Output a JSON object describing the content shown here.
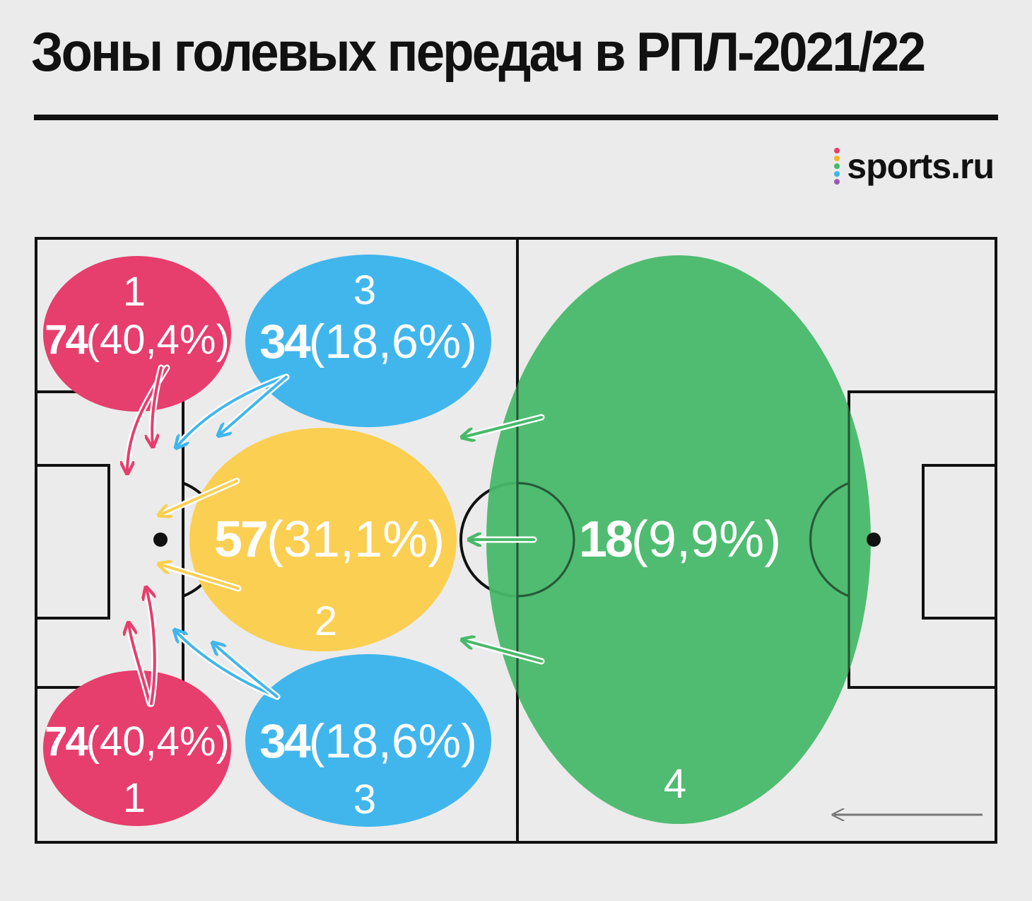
{
  "title": "Зоны голевых передач в РПЛ-2021/22",
  "brand": {
    "name": "sports.ru",
    "logo_icon": "sports-ru-dots-logo",
    "dot_colors": [
      "#e63e6d",
      "#f2b72c",
      "#48b96a",
      "#3fb4e9",
      "#9b59b6"
    ]
  },
  "colors": {
    "zone1": "#e63e6d",
    "zone2": "#fbcf52",
    "zone3": "#41b6ec",
    "zone4": "#48b96a",
    "background": "#ebebeb",
    "lines": "#111111"
  },
  "zones": {
    "zone1_top": {
      "number": "1",
      "value": "74",
      "pct": "(40,4%)"
    },
    "zone1_bottom": {
      "number": "1",
      "value": "74",
      "pct": "(40,4%)"
    },
    "zone3_top": {
      "number": "3",
      "value": "34",
      "pct": "(18,6%)"
    },
    "zone3_bottom": {
      "number": "3",
      "value": "34",
      "pct": "(18,6%)"
    },
    "zone2": {
      "number": "2",
      "value": "57",
      "pct": "(31,1%)"
    },
    "zone4": {
      "number": "4",
      "value": "18",
      "pct": "(9,9%)"
    }
  },
  "attack_direction_icon": "arrow-left-icon"
}
